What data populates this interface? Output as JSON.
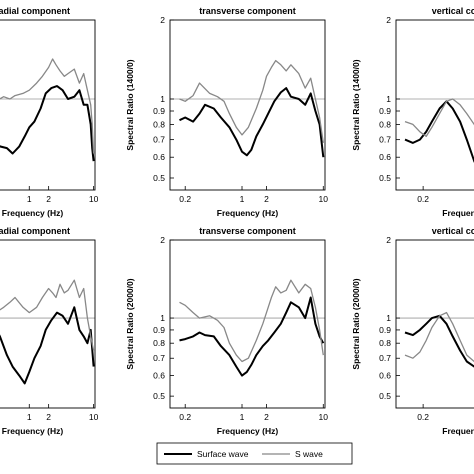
{
  "legend": {
    "surface_label": "Surface wave",
    "s_label": "S wave",
    "surface_color": "#000000",
    "s_color": "#888888"
  },
  "chart_data": [
    {
      "type": "line",
      "title": "radial component",
      "ylabel": "",
      "xlabel": "Frequency (Hz)",
      "x_scale": "log",
      "y_scale": "log",
      "xlim": [
        0.12,
        10.5
      ],
      "ylim": [
        0.45,
        2.0
      ],
      "x_ticks": [
        {
          "v": 1,
          "label": "1"
        },
        {
          "v": 2,
          "label": "2"
        },
        {
          "v": 10,
          "label": "10"
        }
      ],
      "y_ticks": [],
      "reference_line": 1,
      "series": [
        {
          "name": "Surface wave",
          "x": [
            0.12,
            0.18,
            0.25,
            0.35,
            0.45,
            0.55,
            0.7,
            0.85,
            1.0,
            1.2,
            1.5,
            1.8,
            2.2,
            2.7,
            3.3,
            4.0,
            5.0,
            6.0,
            7.0,
            8.0,
            9.0,
            9.5,
            10.0
          ],
          "y": [
            0.75,
            0.78,
            0.72,
            0.66,
            0.65,
            0.62,
            0.66,
            0.72,
            0.78,
            0.82,
            0.92,
            1.05,
            1.1,
            1.12,
            1.08,
            1.0,
            1.02,
            1.08,
            0.95,
            0.95,
            0.8,
            0.65,
            0.58
          ]
        },
        {
          "name": "S wave",
          "x": [
            0.12,
            0.2,
            0.3,
            0.4,
            0.5,
            0.6,
            0.8,
            1.0,
            1.3,
            1.6,
            2.0,
            2.3,
            2.6,
            3.0,
            3.5,
            4.0,
            5.0,
            6.0,
            7.0,
            8.0,
            9.0,
            9.5,
            10.0
          ],
          "y": [
            0.95,
            1.0,
            0.98,
            1.02,
            1.0,
            1.03,
            1.05,
            1.08,
            1.15,
            1.22,
            1.32,
            1.42,
            1.35,
            1.28,
            1.22,
            1.25,
            1.3,
            1.15,
            1.25,
            1.08,
            0.95,
            0.8,
            0.62
          ]
        }
      ]
    },
    {
      "type": "line",
      "title": "transverse component",
      "ylabel": "Spectral Ratio (1400/0)",
      "xlabel": "Frequency (Hz)",
      "x_scale": "log",
      "y_scale": "log",
      "xlim": [
        0.13,
        10.5
      ],
      "ylim": [
        0.45,
        2.0
      ],
      "x_ticks": [
        {
          "v": 0.2,
          "label": "0.2"
        },
        {
          "v": 1,
          "label": "1"
        },
        {
          "v": 2,
          "label": "2"
        },
        {
          "v": 10,
          "label": "10"
        }
      ],
      "y_ticks": [
        {
          "v": 0.5,
          "label": "0.5"
        },
        {
          "v": 0.6,
          "label": "0.6"
        },
        {
          "v": 0.7,
          "label": "0.7"
        },
        {
          "v": 0.8,
          "label": "0.8"
        },
        {
          "v": 0.9,
          "label": "0.9"
        },
        {
          "v": 1,
          "label": "1"
        },
        {
          "v": 2,
          "label": "2"
        }
      ],
      "reference_line": 1,
      "series": [
        {
          "name": "Surface wave",
          "x": [
            0.17,
            0.2,
            0.25,
            0.3,
            0.35,
            0.45,
            0.55,
            0.7,
            0.85,
            1.0,
            1.15,
            1.3,
            1.5,
            1.8,
            2.1,
            2.5,
            3.0,
            3.5,
            4.0,
            5.0,
            6.0,
            7.0,
            8.0,
            9.0,
            10.0
          ],
          "y": [
            0.83,
            0.85,
            0.82,
            0.88,
            0.95,
            0.92,
            0.85,
            0.78,
            0.7,
            0.63,
            0.61,
            0.64,
            0.72,
            0.8,
            0.88,
            0.98,
            1.06,
            1.1,
            1.02,
            1.0,
            0.95,
            1.05,
            0.9,
            0.8,
            0.6
          ]
        },
        {
          "name": "S wave",
          "x": [
            0.17,
            0.2,
            0.25,
            0.3,
            0.4,
            0.5,
            0.6,
            0.7,
            0.85,
            1.0,
            1.2,
            1.5,
            1.8,
            2.0,
            2.3,
            2.6,
            3.0,
            3.5,
            4.0,
            5.0,
            6.0,
            7.0,
            8.0,
            9.0,
            10.0
          ],
          "y": [
            1.0,
            0.98,
            1.03,
            1.15,
            1.05,
            1.02,
            0.98,
            0.88,
            0.78,
            0.73,
            0.78,
            0.92,
            1.08,
            1.22,
            1.32,
            1.4,
            1.35,
            1.28,
            1.35,
            1.25,
            1.1,
            1.2,
            1.0,
            0.85,
            0.68
          ]
        }
      ]
    },
    {
      "type": "line",
      "title": "vertical component",
      "ylabel": "Spectral Ratio (1400/0)",
      "xlabel": "Frequency (Hz)",
      "x_scale": "log",
      "y_scale": "log",
      "xlim": [
        0.13,
        1.5
      ],
      "ylim": [
        0.45,
        2.0
      ],
      "x_ticks": [
        {
          "v": 0.2,
          "label": "0.2"
        }
      ],
      "y_ticks": [
        {
          "v": 0.5,
          "label": "0.5"
        },
        {
          "v": 0.6,
          "label": "0.6"
        },
        {
          "v": 0.7,
          "label": "0.7"
        },
        {
          "v": 0.8,
          "label": "0.8"
        },
        {
          "v": 0.9,
          "label": "0.9"
        },
        {
          "v": 1,
          "label": "1"
        },
        {
          "v": 2,
          "label": "2"
        }
      ],
      "reference_line": 1,
      "series": [
        {
          "name": "Surface wave",
          "x": [
            0.15,
            0.17,
            0.19,
            0.21,
            0.23,
            0.26,
            0.29,
            0.32,
            0.36,
            0.4,
            0.45,
            0.5
          ],
          "y": [
            0.7,
            0.68,
            0.7,
            0.75,
            0.82,
            0.92,
            0.98,
            0.92,
            0.82,
            0.7,
            0.58,
            0.52
          ]
        },
        {
          "name": "S wave",
          "x": [
            0.15,
            0.17,
            0.19,
            0.21,
            0.23,
            0.26,
            0.29,
            0.32,
            0.36,
            0.4,
            0.45,
            0.5
          ],
          "y": [
            0.82,
            0.8,
            0.75,
            0.72,
            0.78,
            0.88,
            0.98,
            1.0,
            0.95,
            0.88,
            0.8,
            0.72
          ]
        }
      ]
    },
    {
      "type": "line",
      "title": "radial component",
      "ylabel": "",
      "xlabel": "Frequency (Hz)",
      "x_scale": "log",
      "y_scale": "log",
      "xlim": [
        0.12,
        10.5
      ],
      "ylim": [
        0.45,
        2.0
      ],
      "x_ticks": [
        {
          "v": 1,
          "label": "1"
        },
        {
          "v": 2,
          "label": "2"
        },
        {
          "v": 10,
          "label": "10"
        }
      ],
      "y_ticks": [],
      "reference_line": 1,
      "series": [
        {
          "name": "Surface wave",
          "x": [
            0.12,
            0.18,
            0.25,
            0.35,
            0.45,
            0.55,
            0.7,
            0.85,
            1.0,
            1.2,
            1.5,
            1.8,
            2.2,
            2.7,
            3.3,
            4.0,
            5.0,
            6.0,
            7.0,
            8.0,
            9.0,
            10.0
          ],
          "y": [
            1.05,
            1.1,
            1.0,
            0.85,
            0.72,
            0.65,
            0.6,
            0.56,
            0.62,
            0.7,
            0.78,
            0.9,
            0.98,
            1.05,
            1.02,
            0.95,
            1.1,
            0.9,
            0.85,
            0.8,
            0.9,
            0.65
          ]
        },
        {
          "name": "S wave",
          "x": [
            0.12,
            0.2,
            0.3,
            0.4,
            0.5,
            0.6,
            0.8,
            1.0,
            1.3,
            1.6,
            2.0,
            2.3,
            2.6,
            3.0,
            3.5,
            4.0,
            5.0,
            6.0,
            7.0,
            8.0,
            9.0,
            10.0
          ],
          "y": [
            1.1,
            1.08,
            1.05,
            1.1,
            1.15,
            1.2,
            1.1,
            1.05,
            1.1,
            1.2,
            1.3,
            1.25,
            1.2,
            1.35,
            1.25,
            1.28,
            1.4,
            1.2,
            1.3,
            1.0,
            0.85,
            0.75
          ]
        }
      ]
    },
    {
      "type": "line",
      "title": "transverse component",
      "ylabel": "Spectral Ratio (2000/0)",
      "xlabel": "Frequency (Hz)",
      "x_scale": "log",
      "y_scale": "log",
      "xlim": [
        0.13,
        10.5
      ],
      "ylim": [
        0.45,
        2.0
      ],
      "x_ticks": [
        {
          "v": 0.2,
          "label": "0.2"
        },
        {
          "v": 1,
          "label": "1"
        },
        {
          "v": 2,
          "label": "2"
        },
        {
          "v": 10,
          "label": "10"
        }
      ],
      "y_ticks": [
        {
          "v": 0.5,
          "label": "0.5"
        },
        {
          "v": 0.6,
          "label": "0.6"
        },
        {
          "v": 0.7,
          "label": "0.7"
        },
        {
          "v": 0.8,
          "label": "0.8"
        },
        {
          "v": 0.9,
          "label": "0.9"
        },
        {
          "v": 1,
          "label": "1"
        },
        {
          "v": 2,
          "label": "2"
        }
      ],
      "reference_line": 1,
      "series": [
        {
          "name": "Surface wave",
          "x": [
            0.17,
            0.2,
            0.25,
            0.3,
            0.35,
            0.45,
            0.55,
            0.7,
            0.85,
            1.0,
            1.15,
            1.3,
            1.5,
            1.8,
            2.1,
            2.5,
            3.0,
            3.5,
            4.0,
            5.0,
            6.0,
            7.0,
            8.0,
            9.0,
            10.0
          ],
          "y": [
            0.82,
            0.83,
            0.85,
            0.88,
            0.86,
            0.85,
            0.78,
            0.72,
            0.65,
            0.6,
            0.62,
            0.66,
            0.72,
            0.78,
            0.82,
            0.88,
            0.95,
            1.05,
            1.15,
            1.1,
            1.0,
            1.2,
            0.95,
            0.85,
            0.8
          ]
        },
        {
          "name": "S wave",
          "x": [
            0.17,
            0.2,
            0.25,
            0.3,
            0.4,
            0.5,
            0.6,
            0.7,
            0.85,
            1.0,
            1.2,
            1.5,
            1.8,
            2.0,
            2.3,
            2.6,
            3.0,
            3.5,
            4.0,
            5.0,
            6.0,
            7.0,
            8.0,
            9.0,
            10.0
          ],
          "y": [
            1.15,
            1.12,
            1.05,
            1.0,
            1.02,
            0.98,
            0.92,
            0.8,
            0.72,
            0.68,
            0.7,
            0.82,
            0.95,
            1.05,
            1.2,
            1.32,
            1.25,
            1.28,
            1.4,
            1.25,
            1.35,
            1.3,
            1.1,
            0.9,
            0.72
          ]
        }
      ]
    },
    {
      "type": "line",
      "title": "vertical component",
      "ylabel": "Spectral Ratio (2000/0)",
      "xlabel": "Frequency (Hz)",
      "x_scale": "log",
      "y_scale": "log",
      "xlim": [
        0.13,
        1.5
      ],
      "ylim": [
        0.45,
        2.0
      ],
      "x_ticks": [
        {
          "v": 0.2,
          "label": "0.2"
        }
      ],
      "y_ticks": [
        {
          "v": 0.5,
          "label": "0.5"
        },
        {
          "v": 0.6,
          "label": "0.6"
        },
        {
          "v": 0.7,
          "label": "0.7"
        },
        {
          "v": 0.8,
          "label": "0.8"
        },
        {
          "v": 0.9,
          "label": "0.9"
        },
        {
          "v": 1,
          "label": "1"
        },
        {
          "v": 2,
          "label": "2"
        }
      ],
      "reference_line": 1,
      "series": [
        {
          "name": "Surface wave",
          "x": [
            0.15,
            0.17,
            0.19,
            0.21,
            0.23,
            0.26,
            0.29,
            0.32,
            0.36,
            0.4,
            0.45,
            0.5
          ],
          "y": [
            0.88,
            0.86,
            0.9,
            0.95,
            1.0,
            1.02,
            0.95,
            0.85,
            0.75,
            0.68,
            0.65,
            0.66
          ]
        },
        {
          "name": "S wave",
          "x": [
            0.15,
            0.17,
            0.19,
            0.21,
            0.23,
            0.26,
            0.29,
            0.32,
            0.36,
            0.4,
            0.45,
            0.5
          ],
          "y": [
            0.72,
            0.7,
            0.74,
            0.82,
            0.92,
            1.02,
            1.05,
            0.95,
            0.82,
            0.72,
            0.68,
            0.72
          ]
        }
      ]
    }
  ]
}
